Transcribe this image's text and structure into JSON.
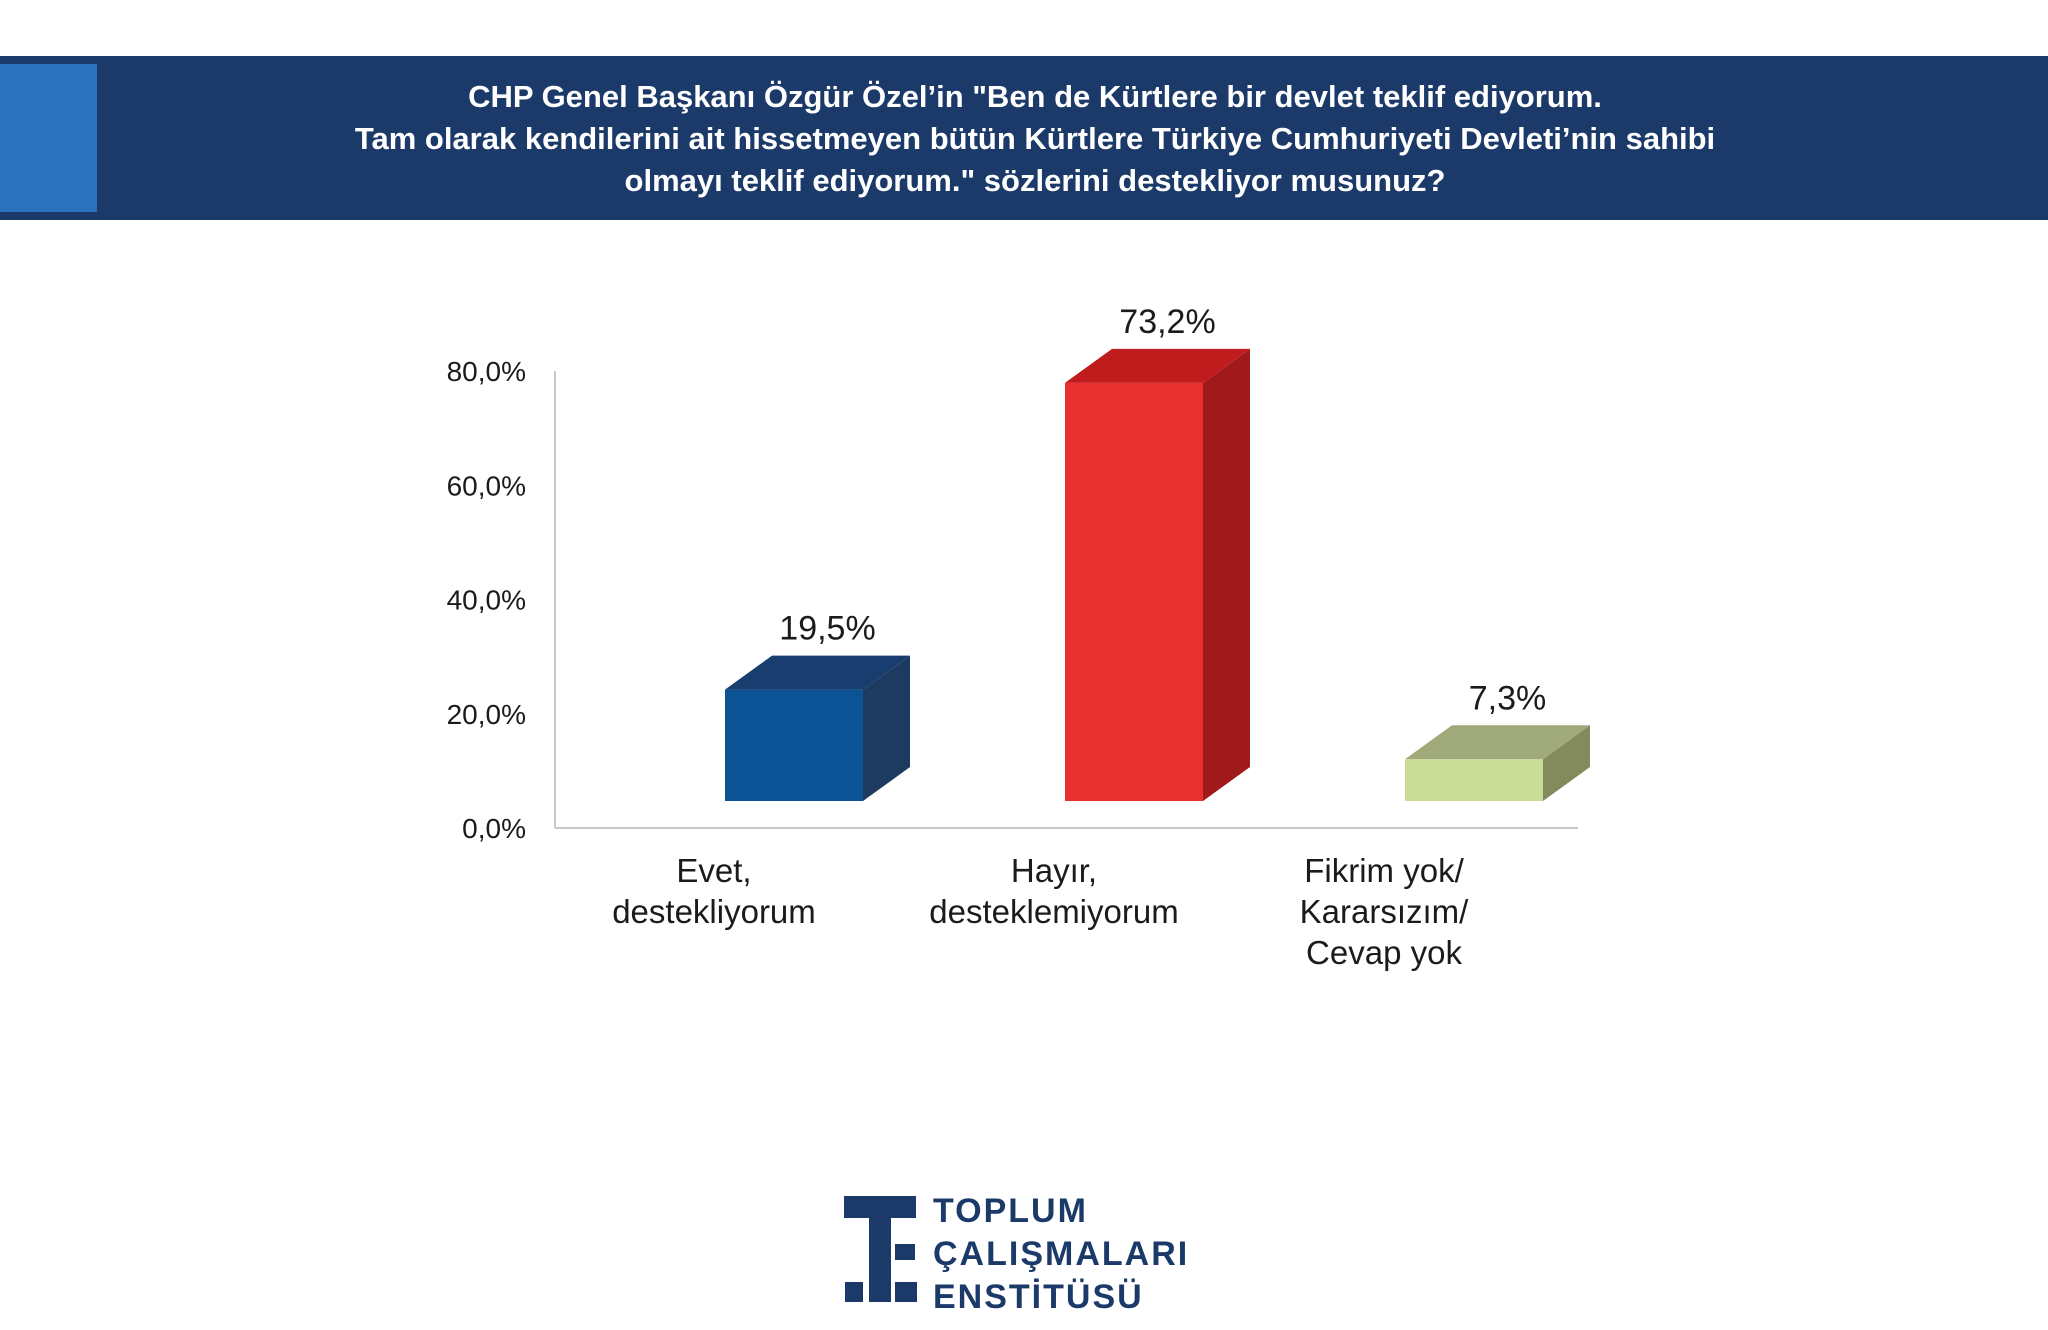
{
  "header": {
    "question_lines": [
      "CHP Genel Başkanı Özgür Özel’in \"Ben de Kürtlere bir devlet teklif ediyorum.",
      "Tam olarak kendilerini ait hissetmeyen bütün Kürtlere Türkiye Cumhuriyeti Devleti’nin sahibi",
      "olmayı teklif ediyorum.\" sözlerini destekliyor musunuz?"
    ]
  },
  "chart_data": {
    "type": "bar",
    "title": "CHP Genel Başkanı Özgür Özel’in \"Ben de Kürtlere bir devlet teklif ediyorum. Tam olarak kendilerini ait hissetmeyen bütün Kürtlere Türkiye Cumhuriyeti Devleti’nin sahibi olmayı teklif ediyorum.\" sözlerini destekliyor musunuz?",
    "categories": [
      [
        "Evet,",
        "destekliyorum"
      ],
      [
        "Hayır,",
        "desteklemiyorum"
      ],
      [
        "Fikrim yok/",
        "Kararsızım/",
        "Cevap yok"
      ]
    ],
    "values": [
      19.5,
      73.2,
      7.3
    ],
    "data_labels": [
      "19,5%",
      "73,2%",
      "7,3%"
    ],
    "ylim": [
      0,
      80
    ],
    "ytick_values": [
      0,
      20,
      40,
      60,
      80
    ],
    "ytick_labels": [
      "0,0%",
      "20,0%",
      "40,0%",
      "60,0%",
      "80,0%"
    ],
    "xlabel": "",
    "ylabel": "",
    "grid": false,
    "legend": "none",
    "bar_style": "3d",
    "colors": [
      {
        "front": "#0c5396",
        "top": "#1a3d70",
        "side": "#1d3a60"
      },
      {
        "front": "#e83030",
        "top": "#c01c1e",
        "side": "#a11a1b"
      },
      {
        "front": "#cadd97",
        "top": "#a0a97a",
        "side": "#838b5c"
      }
    ]
  },
  "logo": {
    "lines": [
      "TOPLUM",
      "ÇALIŞMALARI",
      "ENSTİTÜSÜ"
    ],
    "color": "#1c3a69"
  }
}
